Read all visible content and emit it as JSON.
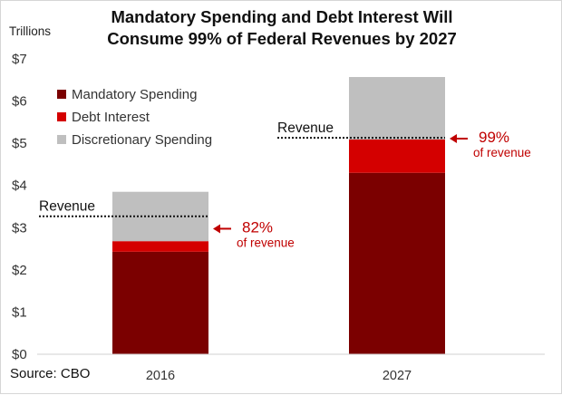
{
  "chart_data": {
    "type": "bar",
    "stacked": true,
    "title_line1": "Mandatory Spending and Debt Interest Will",
    "title_line2": "Consume 99% of Federal Revenues by 2027",
    "ylabel": "Trillions",
    "ylim": [
      0,
      7
    ],
    "yticks": [
      {
        "value": 0,
        "label": "$0"
      },
      {
        "value": 1,
        "label": "$1"
      },
      {
        "value": 2,
        "label": "$2"
      },
      {
        "value": 3,
        "label": "$3"
      },
      {
        "value": 4,
        "label": "$4"
      },
      {
        "value": 5,
        "label": "$5"
      },
      {
        "value": 6,
        "label": "$6"
      },
      {
        "value": 7,
        "label": "$7"
      }
    ],
    "categories": [
      "2016",
      "2027"
    ],
    "series": [
      {
        "name": "Mandatory Spending",
        "color": "#7b0000",
        "values": [
          2.43,
          4.3
        ]
      },
      {
        "name": "Debt Interest",
        "color": "#d40000",
        "values": [
          0.25,
          0.79
        ]
      },
      {
        "name": "Discretionary Spending",
        "color": "#bfbfbf",
        "values": [
          1.17,
          1.48
        ]
      }
    ],
    "revenue": {
      "label": "Revenue",
      "values": [
        3.27,
        5.13
      ]
    },
    "annotations": [
      {
        "category": "2016",
        "value": "82%",
        "sub": "of revenue"
      },
      {
        "category": "2027",
        "value": "99%",
        "sub": "of revenue"
      }
    ],
    "legend_position": "top-left",
    "grid": false,
    "source": "Source:  CBO"
  }
}
